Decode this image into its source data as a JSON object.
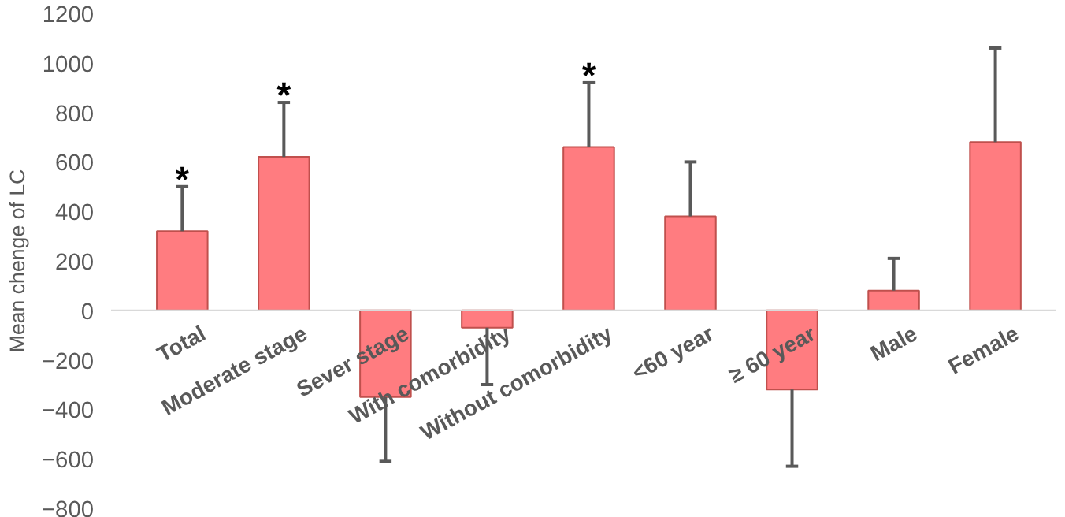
{
  "chart_data": {
    "type": "bar",
    "ylabel": "Mean chenge of LC",
    "categories": [
      "Total",
      "Moderate stage",
      "Sever stage",
      "With comorbidity",
      "Without comorbidity",
      "<60 year",
      "≥ 60 year",
      "Male",
      "Female"
    ],
    "values": [
      320,
      620,
      -350,
      -70,
      660,
      380,
      -320,
      80,
      680
    ],
    "errors": [
      [
        320,
        500
      ],
      [
        620,
        840
      ],
      [
        -610,
        -350
      ],
      [
        -300,
        -70
      ],
      [
        660,
        920
      ],
      [
        380,
        600
      ],
      [
        -630,
        -320
      ],
      [
        80,
        210
      ],
      [
        680,
        1060
      ]
    ],
    "color": "#ff7c80",
    "ylim": [
      -800,
      1200
    ],
    "yticks": [
      -800,
      -600,
      -400,
      -200,
      0,
      200,
      400,
      600,
      800,
      1000,
      1200
    ],
    "grid": false,
    "annotations": [
      {
        "text": "*",
        "x": "Total",
        "y": 320
      },
      {
        "text": "*",
        "x": "Moderate stage",
        "y": 620
      },
      {
        "text": "*",
        "x": "Without comorbidity",
        "y": 660
      }
    ]
  }
}
